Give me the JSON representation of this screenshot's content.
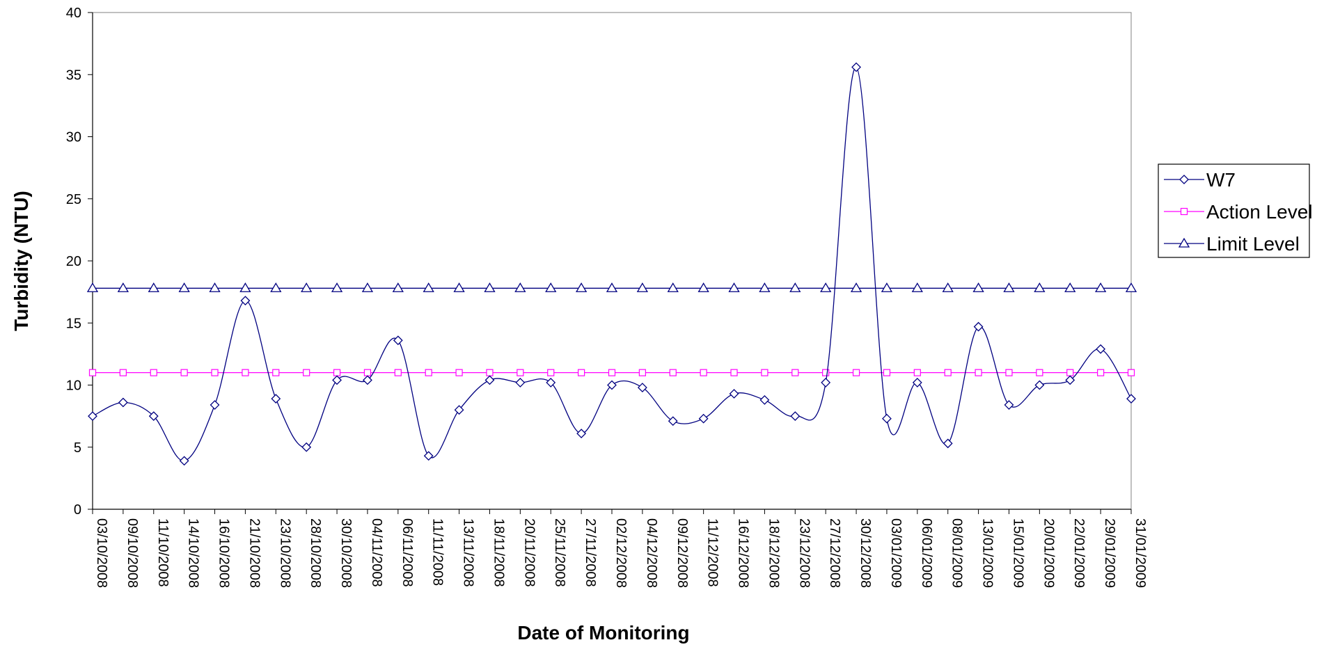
{
  "chart_data": {
    "type": "line",
    "title": "",
    "xlabel": "Date of Monitoring",
    "ylabel": "Turbidity  (NTU)",
    "ylim": [
      0,
      40
    ],
    "y_ticks": [
      0,
      5,
      10,
      15,
      20,
      25,
      30,
      35,
      40
    ],
    "grid": false,
    "legend_position": "right",
    "x": [
      "03/10/2008",
      "09/10/2008",
      "11/10/2008",
      "14/10/2008",
      "16/10/2008",
      "21/10/2008",
      "23/10/2008",
      "28/10/2008",
      "30/10/2008",
      "04/11/2008",
      "06/11/2008",
      "11/11/2008",
      "13/11/2008",
      "18/11/2008",
      "20/11/2008",
      "25/11/2008",
      "27/11/2008",
      "02/12/2008",
      "04/12/2008",
      "09/12/2008",
      "11/12/2008",
      "16/12/2008",
      "18/12/2008",
      "23/12/2008",
      "27/12/2008",
      "30/12/2008",
      "03/01/2009",
      "06/01/2009",
      "08/01/2009",
      "13/01/2009",
      "15/01/2009",
      "20/01/2009",
      "22/01/2009",
      "29/01/2009",
      "31/01/2009"
    ],
    "series": [
      {
        "name": "W7",
        "color": "#000080",
        "marker": "diamond",
        "values": [
          7.5,
          8.6,
          7.5,
          3.9,
          8.4,
          16.8,
          8.9,
          5.0,
          10.4,
          10.4,
          13.6,
          4.3,
          8.0,
          10.4,
          10.2,
          10.2,
          6.1,
          10.0,
          9.8,
          7.1,
          7.3,
          9.3,
          8.8,
          7.5,
          10.2,
          35.6,
          7.3,
          10.2,
          5.3,
          14.7,
          8.4,
          10.0,
          10.4,
          12.9,
          8.9
        ]
      },
      {
        "name": "Action Level",
        "color": "#ff00ff",
        "marker": "square",
        "values": [
          11,
          11,
          11,
          11,
          11,
          11,
          11,
          11,
          11,
          11,
          11,
          11,
          11,
          11,
          11,
          11,
          11,
          11,
          11,
          11,
          11,
          11,
          11,
          11,
          11,
          11,
          11,
          11,
          11,
          11,
          11,
          11,
          11,
          11,
          11
        ]
      },
      {
        "name": "Limit Level",
        "color": "#000080",
        "marker": "triangle",
        "values": [
          17.8,
          17.8,
          17.8,
          17.8,
          17.8,
          17.8,
          17.8,
          17.8,
          17.8,
          17.8,
          17.8,
          17.8,
          17.8,
          17.8,
          17.8,
          17.8,
          17.8,
          17.8,
          17.8,
          17.8,
          17.8,
          17.8,
          17.8,
          17.8,
          17.8,
          17.8,
          17.8,
          17.8,
          17.8,
          17.8,
          17.8,
          17.8,
          17.8,
          17.8,
          17.8
        ]
      }
    ]
  }
}
